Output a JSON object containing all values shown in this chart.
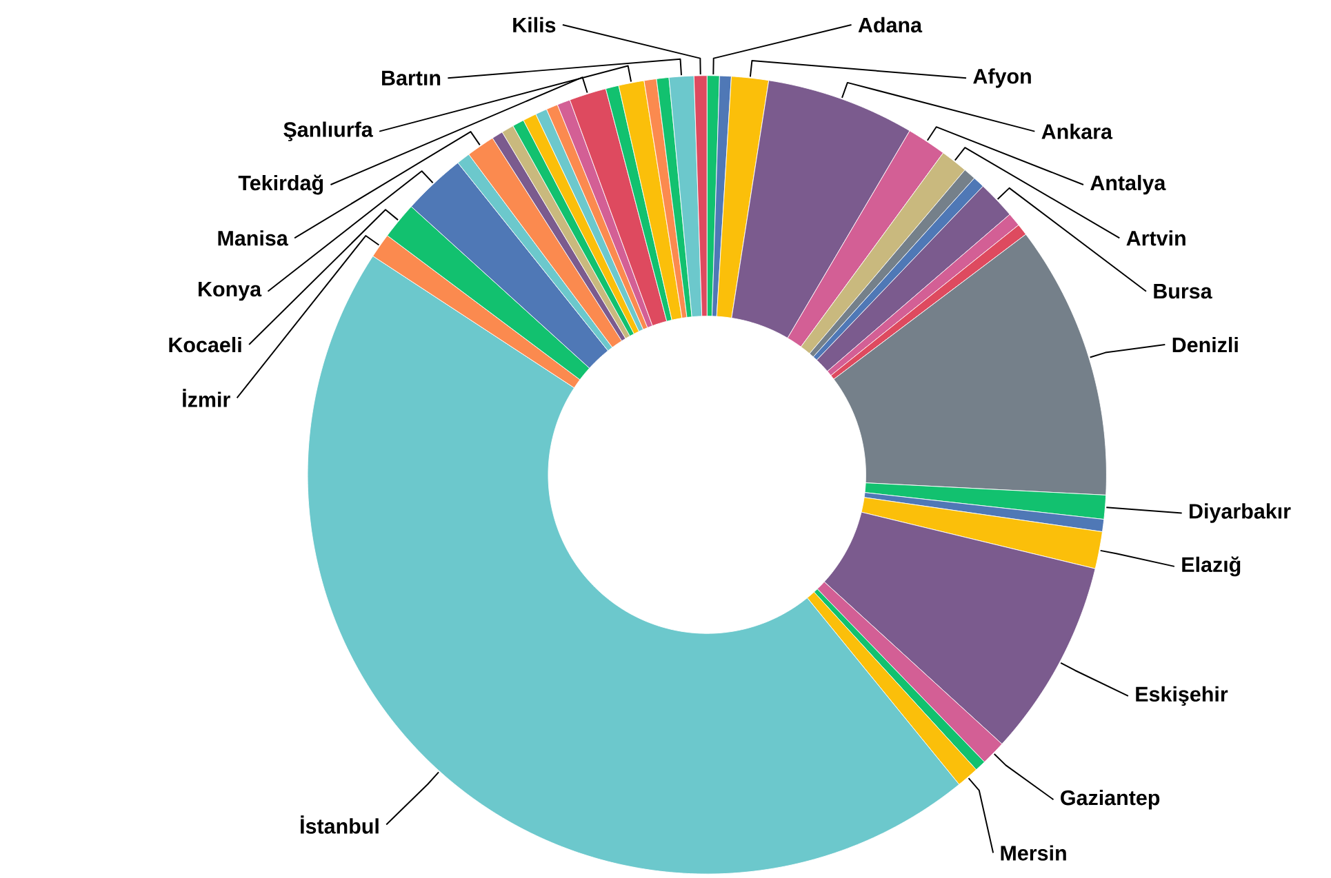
{
  "chart_data": {
    "type": "donut",
    "categories": [
      "Adana",
      null,
      "Afyon",
      "Ankara",
      "Antalya",
      "Artvin",
      null,
      null,
      "Bursa",
      null,
      null,
      "Denizli",
      "Diyarbakır",
      null,
      "Elazığ",
      "Eskişehir",
      "Gaziantep",
      null,
      "Mersin",
      "İstanbul",
      "İzmir",
      "Kocaeli",
      "Konya",
      null,
      "Manisa",
      null,
      null,
      null,
      null,
      null,
      null,
      null,
      "Tekirdağ",
      null,
      "Şanlıurfa",
      null,
      null,
      "Bartın",
      "Kilis"
    ],
    "values": [
      0.5,
      0.47,
      1.5,
      6.0,
      1.6,
      1.1,
      0.5,
      0.47,
      1.55,
      0.55,
      0.47,
      11.1,
      0.97,
      0.5,
      1.5,
      8.0,
      1.0,
      0.45,
      0.9,
      45.1,
      1.0,
      1.5,
      2.55,
      0.55,
      1.15,
      0.45,
      0.5,
      0.47,
      0.55,
      0.47,
      0.47,
      0.53,
      1.5,
      0.53,
      1.03,
      0.5,
      0.5,
      1.0,
      0.52
    ],
    "colors": [
      "#12c16f",
      "#4f78b6",
      "#fbbf0a",
      "#7b5b8e",
      "#d35f95",
      "#c9b97e",
      "#75808a",
      "#4f78b6",
      "#7b5b8e",
      "#d35f95",
      "#de4a5f",
      "#75808a",
      "#12c16f",
      "#4f78b6",
      "#fbbf0a",
      "#7b5b8e",
      "#d35f95",
      "#12c16f",
      "#fbbf0a",
      "#6cc8cc",
      "#fb8a4f",
      "#12c16f",
      "#4f78b6",
      "#6cc8cc",
      "#fb8a4f",
      "#7b5b8e",
      "#c9b97e",
      "#12c16f",
      "#fbbf0a",
      "#6cc8cc",
      "#fb8a4f",
      "#d35f95",
      "#de4a5f",
      "#12c16f",
      "#fbbf0a",
      "#fb8a4f",
      "#12c16f",
      "#6cc8cc",
      "#de4a5f"
    ]
  }
}
